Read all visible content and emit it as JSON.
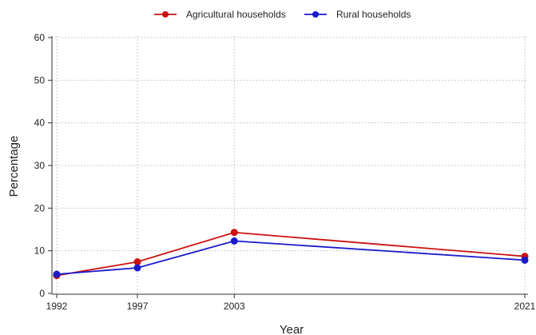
{
  "chart_data": {
    "type": "line",
    "title": "",
    "xlabel": "Year",
    "ylabel": "Percentage",
    "x": [
      1992,
      1997,
      2003,
      2021
    ],
    "xticks": [
      "1992",
      "1997",
      "2003",
      "2021"
    ],
    "yticks": [
      "0",
      "10",
      "20",
      "30",
      "40",
      "50",
      "60"
    ],
    "ylim": [
      0,
      60
    ],
    "grid": true,
    "legend_position": "top-center",
    "series": [
      {
        "name": "Agricultural households",
        "color": "#cc1111",
        "values": [
          4.2,
          7.4,
          14.3,
          8.7
        ]
      },
      {
        "name": "Rural households",
        "color": "#1a1acc",
        "values": [
          4.5,
          6.0,
          12.3,
          7.8
        ]
      }
    ]
  }
}
